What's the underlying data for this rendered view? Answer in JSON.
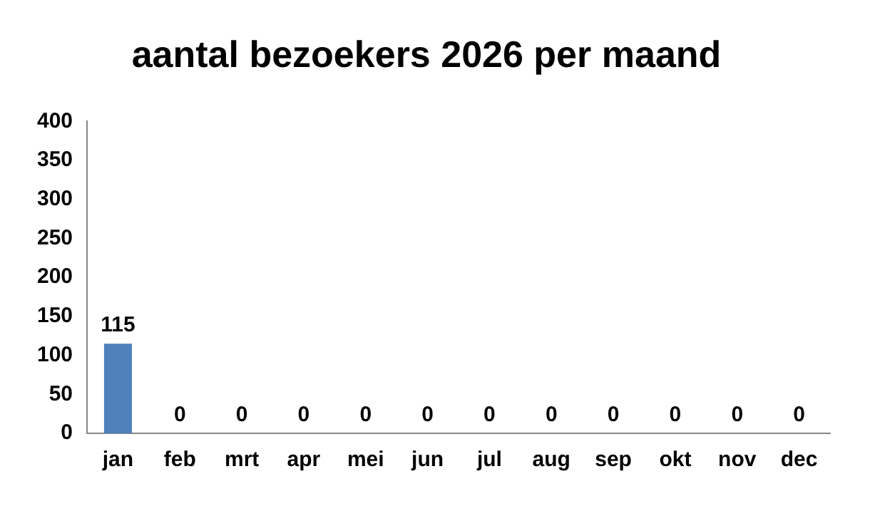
{
  "chart_data": {
    "type": "bar",
    "title": "aantal bezoekers 2026 per maand",
    "categories": [
      "jan",
      "feb",
      "mrt",
      "apr",
      "mei",
      "jun",
      "jul",
      "aug",
      "sep",
      "okt",
      "nov",
      "dec"
    ],
    "values": [
      115,
      0,
      0,
      0,
      0,
      0,
      0,
      0,
      0,
      0,
      0,
      0
    ],
    "color": "#4f81bd",
    "ylim": [
      0,
      400
    ],
    "yticks": [
      0,
      50,
      100,
      150,
      200,
      250,
      300,
      350,
      400
    ],
    "data_labels": true,
    "grid": false,
    "legend": false
  }
}
